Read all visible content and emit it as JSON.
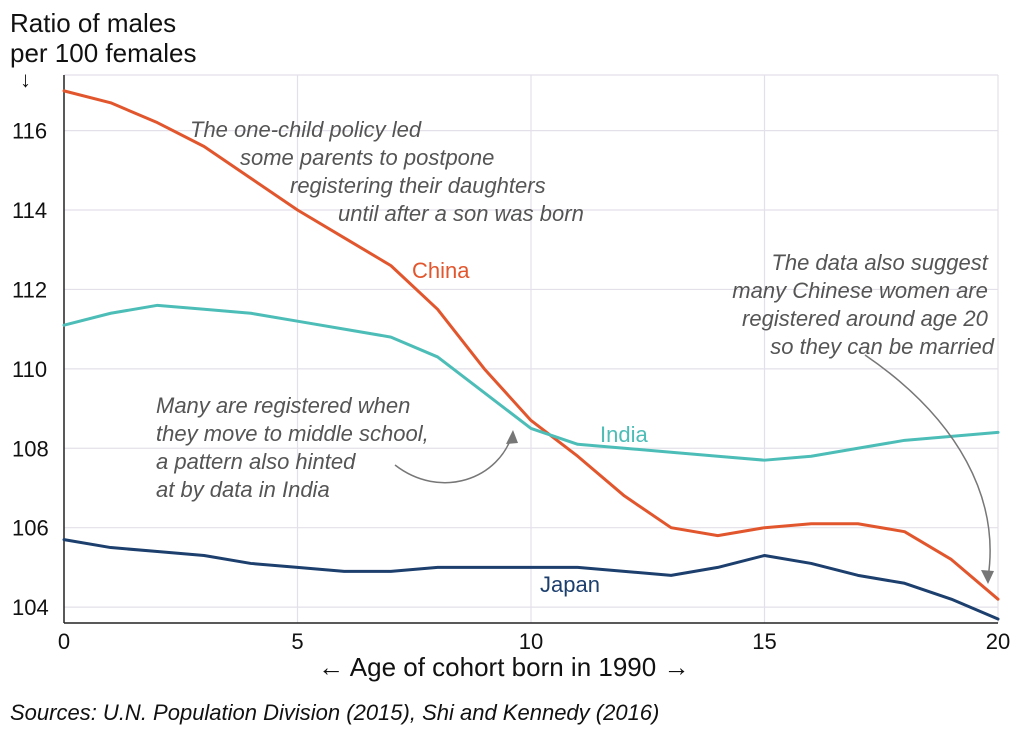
{
  "chart_data": {
    "type": "line",
    "ylabel_lines": [
      "Ratio of males",
      "per 100 females"
    ],
    "ylabel_arrow": "↓",
    "xlabel": "← Age of cohort born in 1990 →",
    "xlim": [
      0,
      20
    ],
    "ylim": [
      103.6,
      117.4
    ],
    "x_ticks": [
      "0",
      "5",
      "10",
      "15",
      "20"
    ],
    "y_ticks": [
      "104",
      "106",
      "108",
      "110",
      "112",
      "114",
      "116"
    ],
    "grid": true,
    "x": [
      0,
      1,
      2,
      3,
      4,
      5,
      6,
      7,
      8,
      9,
      10,
      11,
      12,
      13,
      14,
      15,
      16,
      17,
      18,
      19,
      20
    ],
    "series": [
      {
        "name": "China",
        "color": "#e2562d",
        "values": [
          117.0,
          116.7,
          116.2,
          115.6,
          114.8,
          114.0,
          113.3,
          112.6,
          111.5,
          110.0,
          108.7,
          107.8,
          106.8,
          106.0,
          105.8,
          106.0,
          106.1,
          106.1,
          105.9,
          105.2,
          104.2
        ]
      },
      {
        "name": "India",
        "color": "#4dbdb8",
        "values": [
          111.1,
          111.4,
          111.6,
          111.5,
          111.4,
          111.2,
          111.0,
          110.8,
          110.3,
          109.4,
          108.5,
          108.1,
          108.0,
          107.9,
          107.8,
          107.7,
          107.8,
          108.0,
          108.2,
          108.3,
          108.4
        ]
      },
      {
        "name": "Japan",
        "color": "#1c3f6e",
        "values": [
          105.7,
          105.5,
          105.4,
          105.3,
          105.1,
          105.0,
          104.9,
          104.9,
          105.0,
          105.0,
          105.0,
          105.0,
          104.9,
          104.8,
          105.0,
          105.3,
          105.1,
          104.8,
          104.6,
          104.2,
          103.7
        ]
      }
    ],
    "annotations": [
      {
        "lines": [
          "The one-child policy led",
          "some parents to postpone",
          "registering their daughters",
          "until after a son was born"
        ]
      },
      {
        "lines": [
          "Many are registered when",
          "they move to middle school,",
          "a pattern also hinted",
          "at by data in India"
        ]
      },
      {
        "lines": [
          "The data also suggest",
          "many Chinese women are",
          "registered around age 20",
          "so they can be married"
        ]
      }
    ],
    "source": "Sources: U.N. Population Division (2015), Shi and Kennedy (2016)"
  }
}
